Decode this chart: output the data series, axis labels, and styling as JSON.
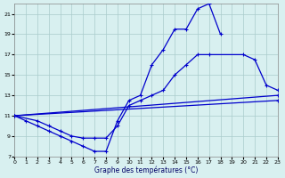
{
  "xlabel": "Graphe des températures (°C)",
  "background_color": "#d8f0f0",
  "grid_color": "#aacccc",
  "line_color": "#0000cc",
  "xlim": [
    0,
    23
  ],
  "ylim": [
    7,
    22
  ],
  "xticks": [
    0,
    1,
    2,
    3,
    4,
    5,
    6,
    7,
    8,
    9,
    10,
    11,
    12,
    13,
    14,
    15,
    16,
    17,
    18,
    19,
    20,
    21,
    22,
    23
  ],
  "yticks": [
    7,
    9,
    11,
    13,
    15,
    17,
    19,
    21
  ],
  "curve1_x": [
    0,
    1,
    2,
    3,
    4,
    5,
    6,
    7,
    8,
    9,
    10,
    11,
    12,
    13,
    14,
    15,
    16,
    17,
    18
  ],
  "curve1_y": [
    11,
    10.5,
    10,
    9.5,
    9,
    8.5,
    8,
    7.5,
    7.5,
    10.5,
    12.5,
    13,
    16,
    17.5,
    19.5,
    19.5,
    21.5,
    22,
    19
  ],
  "curve2_x": [
    0,
    2,
    3,
    4,
    5,
    6,
    7,
    8,
    9,
    10,
    11,
    12,
    13,
    14,
    15,
    16,
    17,
    20,
    21,
    22,
    23
  ],
  "curve2_y": [
    11,
    10.5,
    10,
    9.5,
    9,
    8.8,
    8.8,
    8.8,
    10,
    12,
    12.5,
    13,
    13.5,
    15,
    16,
    17,
    17,
    17,
    16.5,
    14,
    13.5
  ],
  "curve3_x": [
    0,
    23
  ],
  "curve3_y": [
    11,
    13
  ],
  "curve4_x": [
    0,
    23
  ],
  "curve4_y": [
    11,
    12.5
  ]
}
